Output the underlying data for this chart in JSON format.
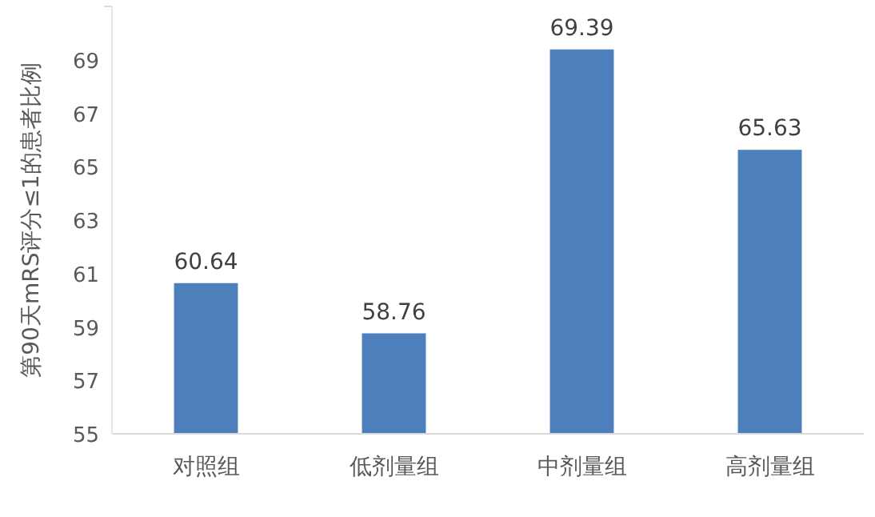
{
  "chart_data": {
    "type": "bar",
    "ylabel": "第90天mRS评分≤1的患者比例",
    "categories": [
      "对照组",
      "低剂量组",
      "中剂量组",
      "高剂量组"
    ],
    "values": [
      60.64,
      58.76,
      69.39,
      65.63
    ],
    "color": "#4e7fbd",
    "ylim": [
      55,
      71
    ],
    "yticks": [
      55,
      57,
      59,
      61,
      63,
      65,
      67,
      69,
      {
        "value": 71,
        "label": null
      }
    ],
    "data_labels": true
  }
}
